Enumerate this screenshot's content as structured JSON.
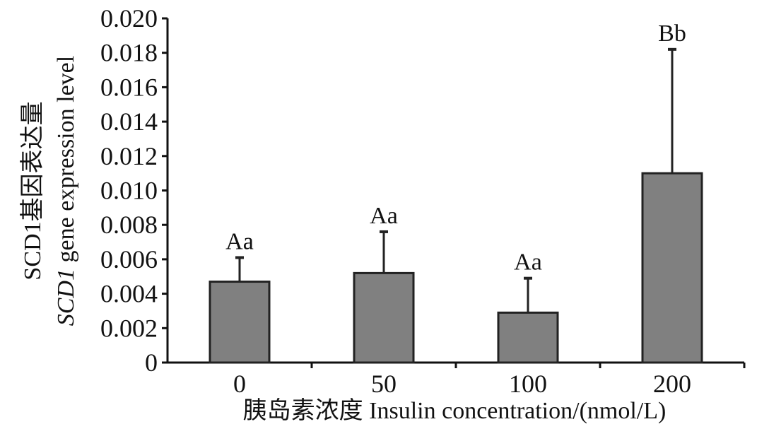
{
  "chart_data": {
    "type": "bar",
    "categories": [
      "0",
      "50",
      "100",
      "200"
    ],
    "values": [
      0.0047,
      0.0052,
      0.0029,
      0.011
    ],
    "errors": [
      0.0014,
      0.0024,
      0.002,
      0.0072
    ],
    "bar_labels": [
      "Aa",
      "Aa",
      "Aa",
      "Bb"
    ],
    "ylim": [
      0,
      0.02
    ],
    "yticks": [
      "0",
      "0.002",
      "0.004",
      "0.006",
      "0.008",
      "0.010",
      "0.012",
      "0.014",
      "0.016",
      "0.018",
      "0.020"
    ],
    "ylabel_cn": "SCD1基因表达量",
    "ylabel_en_italic": "SCD1",
    "ylabel_en_rest": " gene expression level",
    "xlabel": "胰岛素浓度 Insulin concentration/(nmol/L)",
    "colors": {
      "bar_fill": "#808080",
      "bar_stroke": "#222222",
      "axis": "#111111"
    },
    "grid": false
  }
}
